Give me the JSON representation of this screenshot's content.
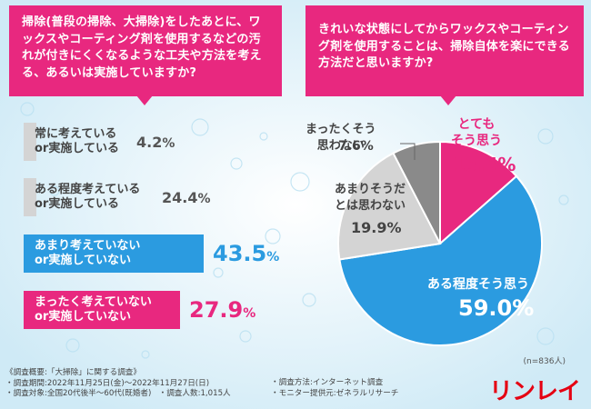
{
  "left_question": "掃除(普段の掃除、大掃除)をしたあとに、ワックスやコーティング剤を使用するなどの汚れが付きにくくなるような工夫や方法を考える、あるいは実施していますか?",
  "right_question": "きれいな状態にしてからワックスやコーティング剤を使用することは、掃除自体を楽にできる方法だと思いますか?",
  "n_label": "(n=836人)",
  "footer": {
    "title": "《調査概要:「大掃除」に関する調査》",
    "period": "・調査期間:2022年11月25日(金)～2022年11月27日(日)",
    "target": "・調査対象:全国20代後半～60代(既婚者)",
    "count": "・調査人数:1,015人",
    "method": "・調査方法:インターネット調査",
    "provider": "・モニター提供元:ゼネラルリサーチ"
  },
  "logo": "リンレイ",
  "colors": {
    "pink": "#e8287f",
    "blue": "#2b9be0",
    "gray": "#d4d4d4",
    "darkgray": "#8a8a8a"
  },
  "chart_data": [
    {
      "type": "bar",
      "categories": [
        "常に考えている\nor実施している",
        "ある程度考えている\nor実施している",
        "あまり考えていない\nor実施していない",
        "まったく考えていない\nor実施していない"
      ],
      "values": [
        4.2,
        24.4,
        43.5,
        27.9
      ],
      "value_labels": [
        "4.2%",
        "24.4%",
        "43.5%",
        "27.9%"
      ],
      "colors": [
        "#d4d4d4",
        "#d4d4d4",
        "#2b9be0",
        "#e8287f"
      ]
    },
    {
      "type": "pie",
      "categories": [
        "とても\nそう思う",
        "ある程度そう思う",
        "あまりそうだ\nとは思わない",
        "まったくそう\n思わない"
      ],
      "values": [
        13.5,
        59.0,
        19.9,
        7.6
      ],
      "value_labels": [
        "13.5%",
        "59.0%",
        "19.9%",
        "7.6%"
      ],
      "colors": [
        "#e8287f",
        "#2b9be0",
        "#d4d4d4",
        "#8a8a8a"
      ]
    }
  ]
}
